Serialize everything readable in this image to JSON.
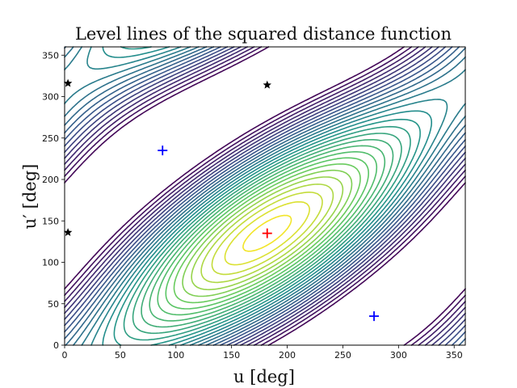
{
  "chart_data": {
    "type": "contour",
    "title": "Level lines of the squared distance function",
    "xlabel": "u [deg]",
    "ylabel": "u′ [deg]",
    "xlim": [
      0,
      360
    ],
    "ylim": [
      0,
      360
    ],
    "xticks": [
      "0",
      "50",
      "100",
      "150",
      "200",
      "250",
      "300",
      "350"
    ],
    "yticks": [
      "0",
      "50",
      "100",
      "150",
      "200",
      "250",
      "300",
      "350"
    ],
    "colormap": "viridis",
    "colormap_colors": [
      "#440154",
      "#3b528b",
      "#21918c",
      "#5ec962",
      "#fde725"
    ],
    "grid": false,
    "legend": "none",
    "contour_levels": 28,
    "markers": [
      {
        "kind": "plus",
        "color": "#ff0000",
        "x": 182,
        "y": 135
      },
      {
        "kind": "plus",
        "color": "#0000ff",
        "x": 88,
        "y": 235
      },
      {
        "kind": "plus",
        "color": "#0000ff",
        "x": 278,
        "y": 35
      },
      {
        "kind": "star",
        "color": "#000000",
        "x": 3,
        "y": 316
      },
      {
        "kind": "star",
        "color": "#000000",
        "x": 182,
        "y": 314
      },
      {
        "kind": "star",
        "color": "#000000",
        "x": 3,
        "y": 136
      }
    ]
  }
}
